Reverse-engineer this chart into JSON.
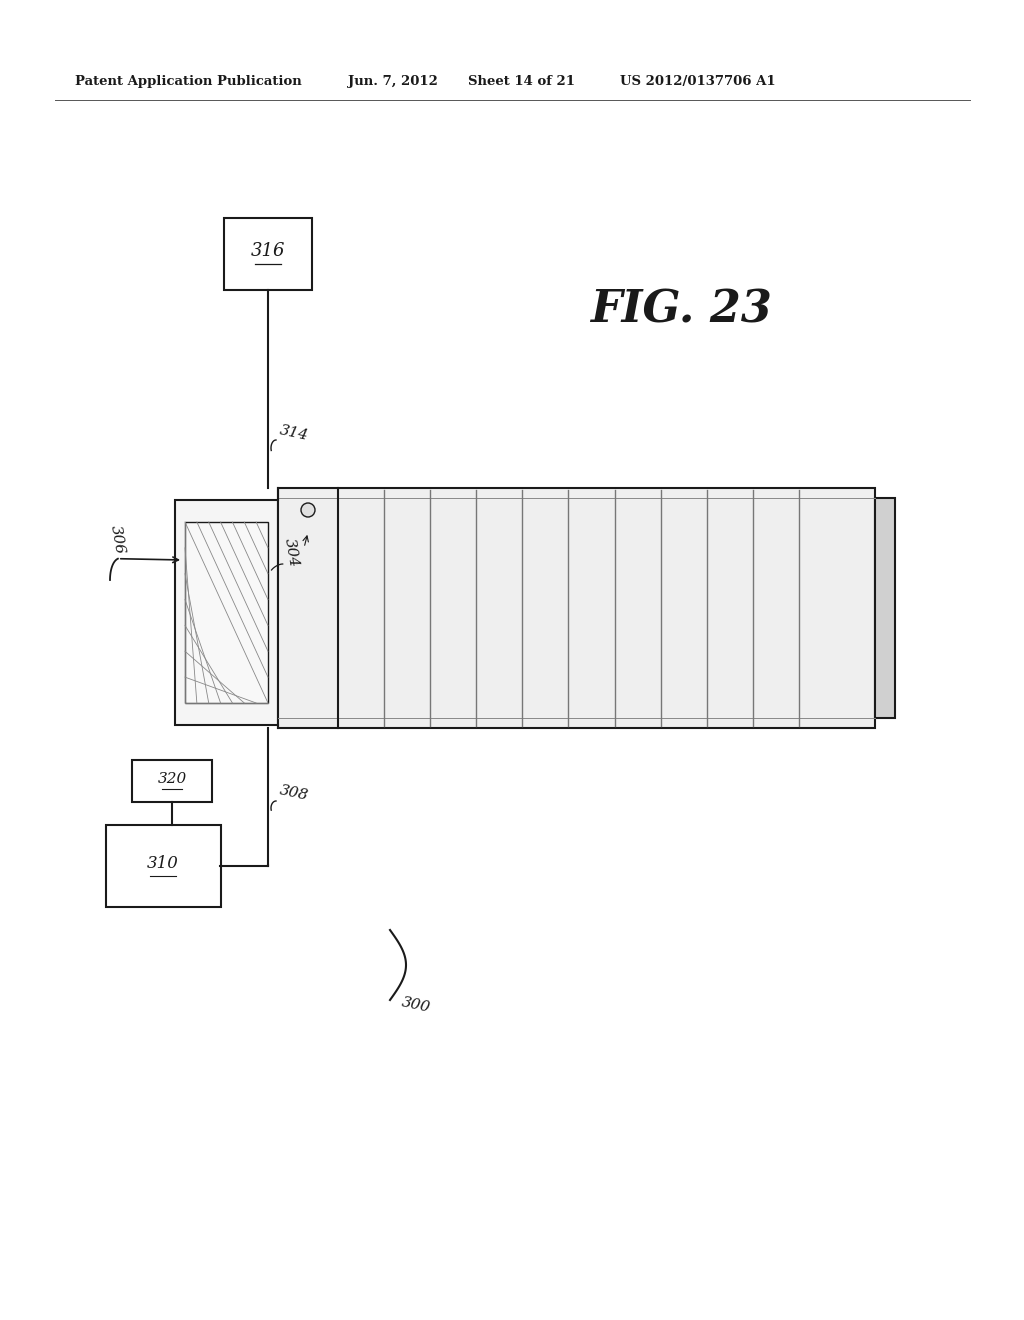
{
  "background_color": "#ffffff",
  "header_text": "Patent Application Publication",
  "header_date": "Jun. 7, 2012",
  "header_sheet": "Sheet 14 of 21",
  "header_patent": "US 2012/0137706 A1",
  "fig_label": "FIG. 23",
  "label_300": "300",
  "label_304": "304",
  "label_306": "306",
  "label_308": "308",
  "label_310": "310",
  "label_314": "314",
  "label_316": "316",
  "label_320": "320"
}
